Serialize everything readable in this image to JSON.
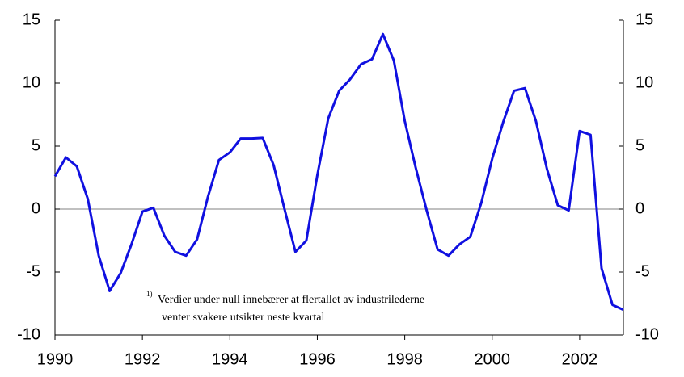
{
  "chart_data": {
    "type": "line",
    "x": [
      1990,
      1990.25,
      1990.5,
      1990.75,
      1991,
      1991.25,
      1991.5,
      1991.75,
      1992,
      1992.25,
      1992.5,
      1992.75,
      1993,
      1993.25,
      1993.5,
      1993.75,
      1994,
      1994.25,
      1994.5,
      1994.75,
      1995,
      1995.25,
      1995.5,
      1995.75,
      1996,
      1996.25,
      1996.5,
      1996.75,
      1997,
      1997.25,
      1997.5,
      1997.75,
      1998,
      1998.25,
      1998.5,
      1998.75,
      1999,
      1999.25,
      1999.5,
      1999.75,
      2000,
      2000.25,
      2000.5,
      2000.75,
      2001,
      2001.25,
      2001.5,
      2001.75,
      2002,
      2002.25,
      2002.5,
      2002.75,
      2003
    ],
    "series": [
      {
        "color": "#1010e0",
        "values": [
          2.6,
          4.1,
          3.4,
          0.8,
          -3.7,
          -6.5,
          -5.1,
          -2.8,
          -0.2,
          0.1,
          -2.1,
          -3.4,
          -3.7,
          -2.4,
          1.0,
          3.9,
          4.5,
          5.6,
          5.6,
          5.65,
          3.5,
          0.0,
          -3.4,
          -2.5,
          2.7,
          7.2,
          9.4,
          10.3,
          11.5,
          11.9,
          13.9,
          11.8,
          7.0,
          3.3,
          -0.1,
          -3.2,
          -3.7,
          -2.8,
          -2.2,
          0.5,
          4.0,
          6.9,
          9.4,
          9.6,
          7.0,
          3.2,
          0.3,
          -0.1,
          6.2,
          5.9,
          -4.7,
          -7.6,
          -8.0
        ]
      }
    ],
    "xlim": [
      1990,
      2003
    ],
    "xticks": [
      1990,
      1992,
      1994,
      1996,
      1998,
      2000,
      2002
    ],
    "ylim": [
      -10,
      15
    ],
    "yticks": [
      -10,
      -5,
      0,
      5,
      10,
      15
    ],
    "y2lim": [
      -10,
      15
    ],
    "y2ticks": [
      -10,
      -5,
      0,
      5,
      10,
      15
    ],
    "annotation": {
      "marker": "1)",
      "lines": [
        "Verdier under null innebærer at flertallet av  industrilederne",
        "venter  svakere utsikter neste kvartal"
      ]
    }
  }
}
